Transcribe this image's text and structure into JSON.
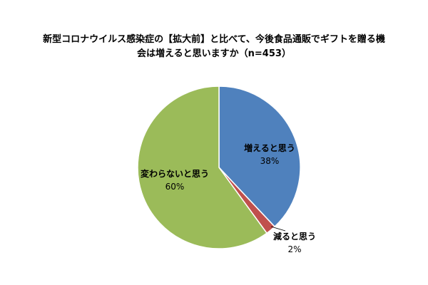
{
  "chart_data": {
    "type": "pie",
    "title": "新型コロナウイルス感染症の【拡大前】と比べて、今後食品通販でギフトを贈る機会は増えると思いますか（n=453）",
    "title_lines": [
      "新型コロナウイルス感染症の【拡大前】と比べて、今後食品通販でギフトを贈る機",
      "会は増えると思いますか（n=453）"
    ],
    "n": 453,
    "slices": [
      {
        "label": "増えると思う",
        "value": 38,
        "value_label": "38%",
        "color": "#4F81BD"
      },
      {
        "label": "減ると思う",
        "value": 2,
        "value_label": "2%",
        "color": "#C0504D"
      },
      {
        "label": "変わらないと思う",
        "value": 60,
        "value_label": "60%",
        "color": "#9BBB59"
      }
    ],
    "start_angle_deg": 0,
    "direction": "clockwise",
    "legend": "none",
    "label_placement": "data labels"
  }
}
